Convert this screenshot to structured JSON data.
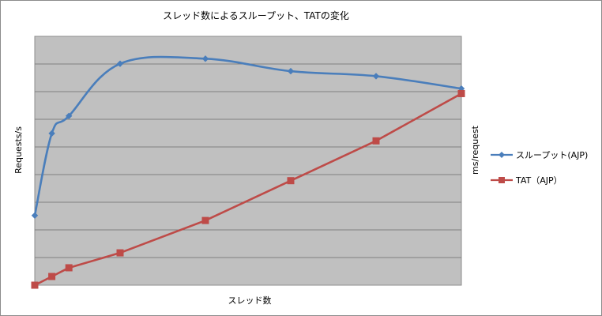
{
  "chart_data": {
    "type": "line",
    "title": "スレッド数によるスループット、TATの変化",
    "xlabel": "スレッド数",
    "ylabel_left": "Requests/s",
    "ylabel_right": "ms/request",
    "x": [
      1,
      2,
      3,
      6,
      11,
      16,
      21,
      26
    ],
    "xlim": [
      1,
      26
    ],
    "ylim_left": [
      0,
      100
    ],
    "ylim_right": [
      0,
      100
    ],
    "grid": true,
    "legend_position": "right",
    "series": [
      {
        "name": "スループット(AJP)",
        "axis": "left",
        "color": "#4a7ebb",
        "marker": "diamond",
        "smooth": true,
        "values": [
          28,
          61,
          68,
          89,
          91,
          86,
          84,
          79
        ]
      },
      {
        "name": "TAT（AJP）",
        "axis": "right",
        "color": "#be4b48",
        "marker": "square",
        "smooth": false,
        "values": [
          0,
          3.5,
          7,
          13,
          26,
          42,
          58,
          77
        ]
      }
    ]
  }
}
